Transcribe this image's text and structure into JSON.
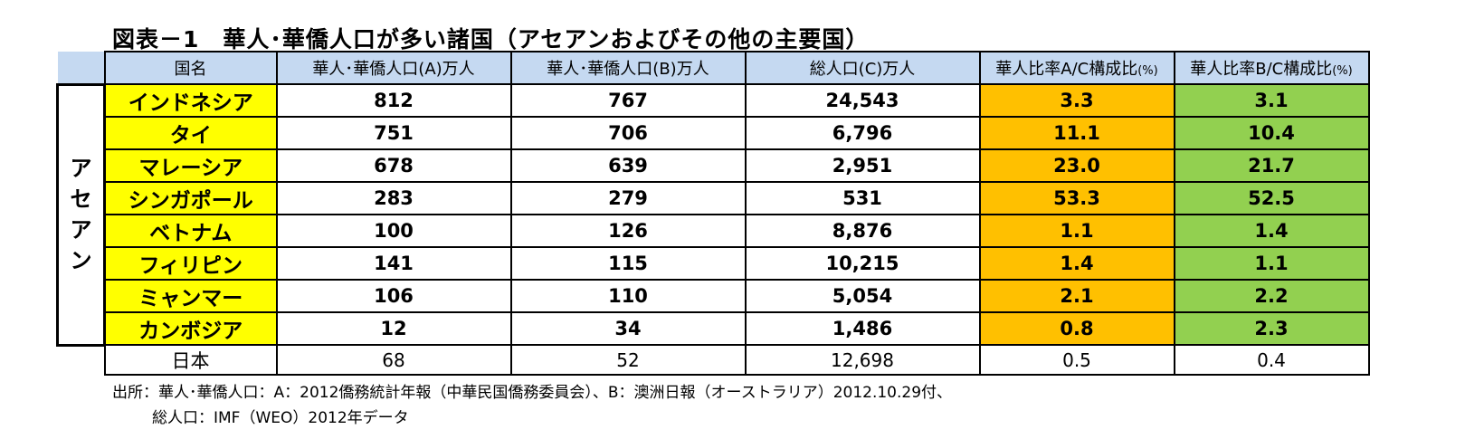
{
  "title": "図表－1　華人･華僑人口が多い諸国（アセアンおよびその他の主要国）",
  "table": {
    "headers": {
      "country": "国名",
      "a": "華人･華僑人口(A)万人",
      "b": "華人･華僑人口(B)万人",
      "c": "総人口(C)万人",
      "ratio_ac": "華人比率A/C構成比",
      "ratio_ac_unit": "(%)",
      "ratio_bc": "華人比率B/C構成比",
      "ratio_bc_unit": "(%)"
    },
    "region_label": "アセアン",
    "rows": [
      {
        "country": "インドネシア",
        "a": "812",
        "b": "767",
        "c": "24,543",
        "ac": "3.3",
        "bc": "3.1"
      },
      {
        "country": "タイ",
        "a": "751",
        "b": "706",
        "c": "6,796",
        "ac": "11.1",
        "bc": "10.4"
      },
      {
        "country": "マレーシア",
        "a": "678",
        "b": "639",
        "c": "2,951",
        "ac": "23.0",
        "bc": "21.7"
      },
      {
        "country": "シンガポール",
        "a": "283",
        "b": "279",
        "c": "531",
        "ac": "53.3",
        "bc": "52.5"
      },
      {
        "country": "ベトナム",
        "a": "100",
        "b": "126",
        "c": "8,876",
        "ac": "1.1",
        "bc": "1.4"
      },
      {
        "country": "フィリピン",
        "a": "141",
        "b": "115",
        "c": "10,215",
        "ac": "1.4",
        "bc": "1.1"
      },
      {
        "country": "ミャンマー",
        "a": "106",
        "b": "110",
        "c": "5,054",
        "ac": "2.1",
        "bc": "2.2"
      },
      {
        "country": "カンボジア",
        "a": "12",
        "b": "34",
        "c": "1,486",
        "ac": "0.8",
        "bc": "2.3"
      }
    ],
    "japan": {
      "country": "日本",
      "a": "68",
      "b": "52",
      "c": "12,698",
      "ac": "0.5",
      "bc": "0.4"
    }
  },
  "source": {
    "line1": "出所：華人･華僑人口：A：2012僑務統計年報（中華民国僑務委員会）、B：澳洲日報（オーストラリア）2012.10.29付、",
    "line2": "総人口：IMF（WEO）2012年データ"
  },
  "colors": {
    "header_bg": "#c5d9f1",
    "country_bg": "#ffff00",
    "ratio_ac_bg": "#ffc000",
    "ratio_bc_bg": "#92d050"
  }
}
